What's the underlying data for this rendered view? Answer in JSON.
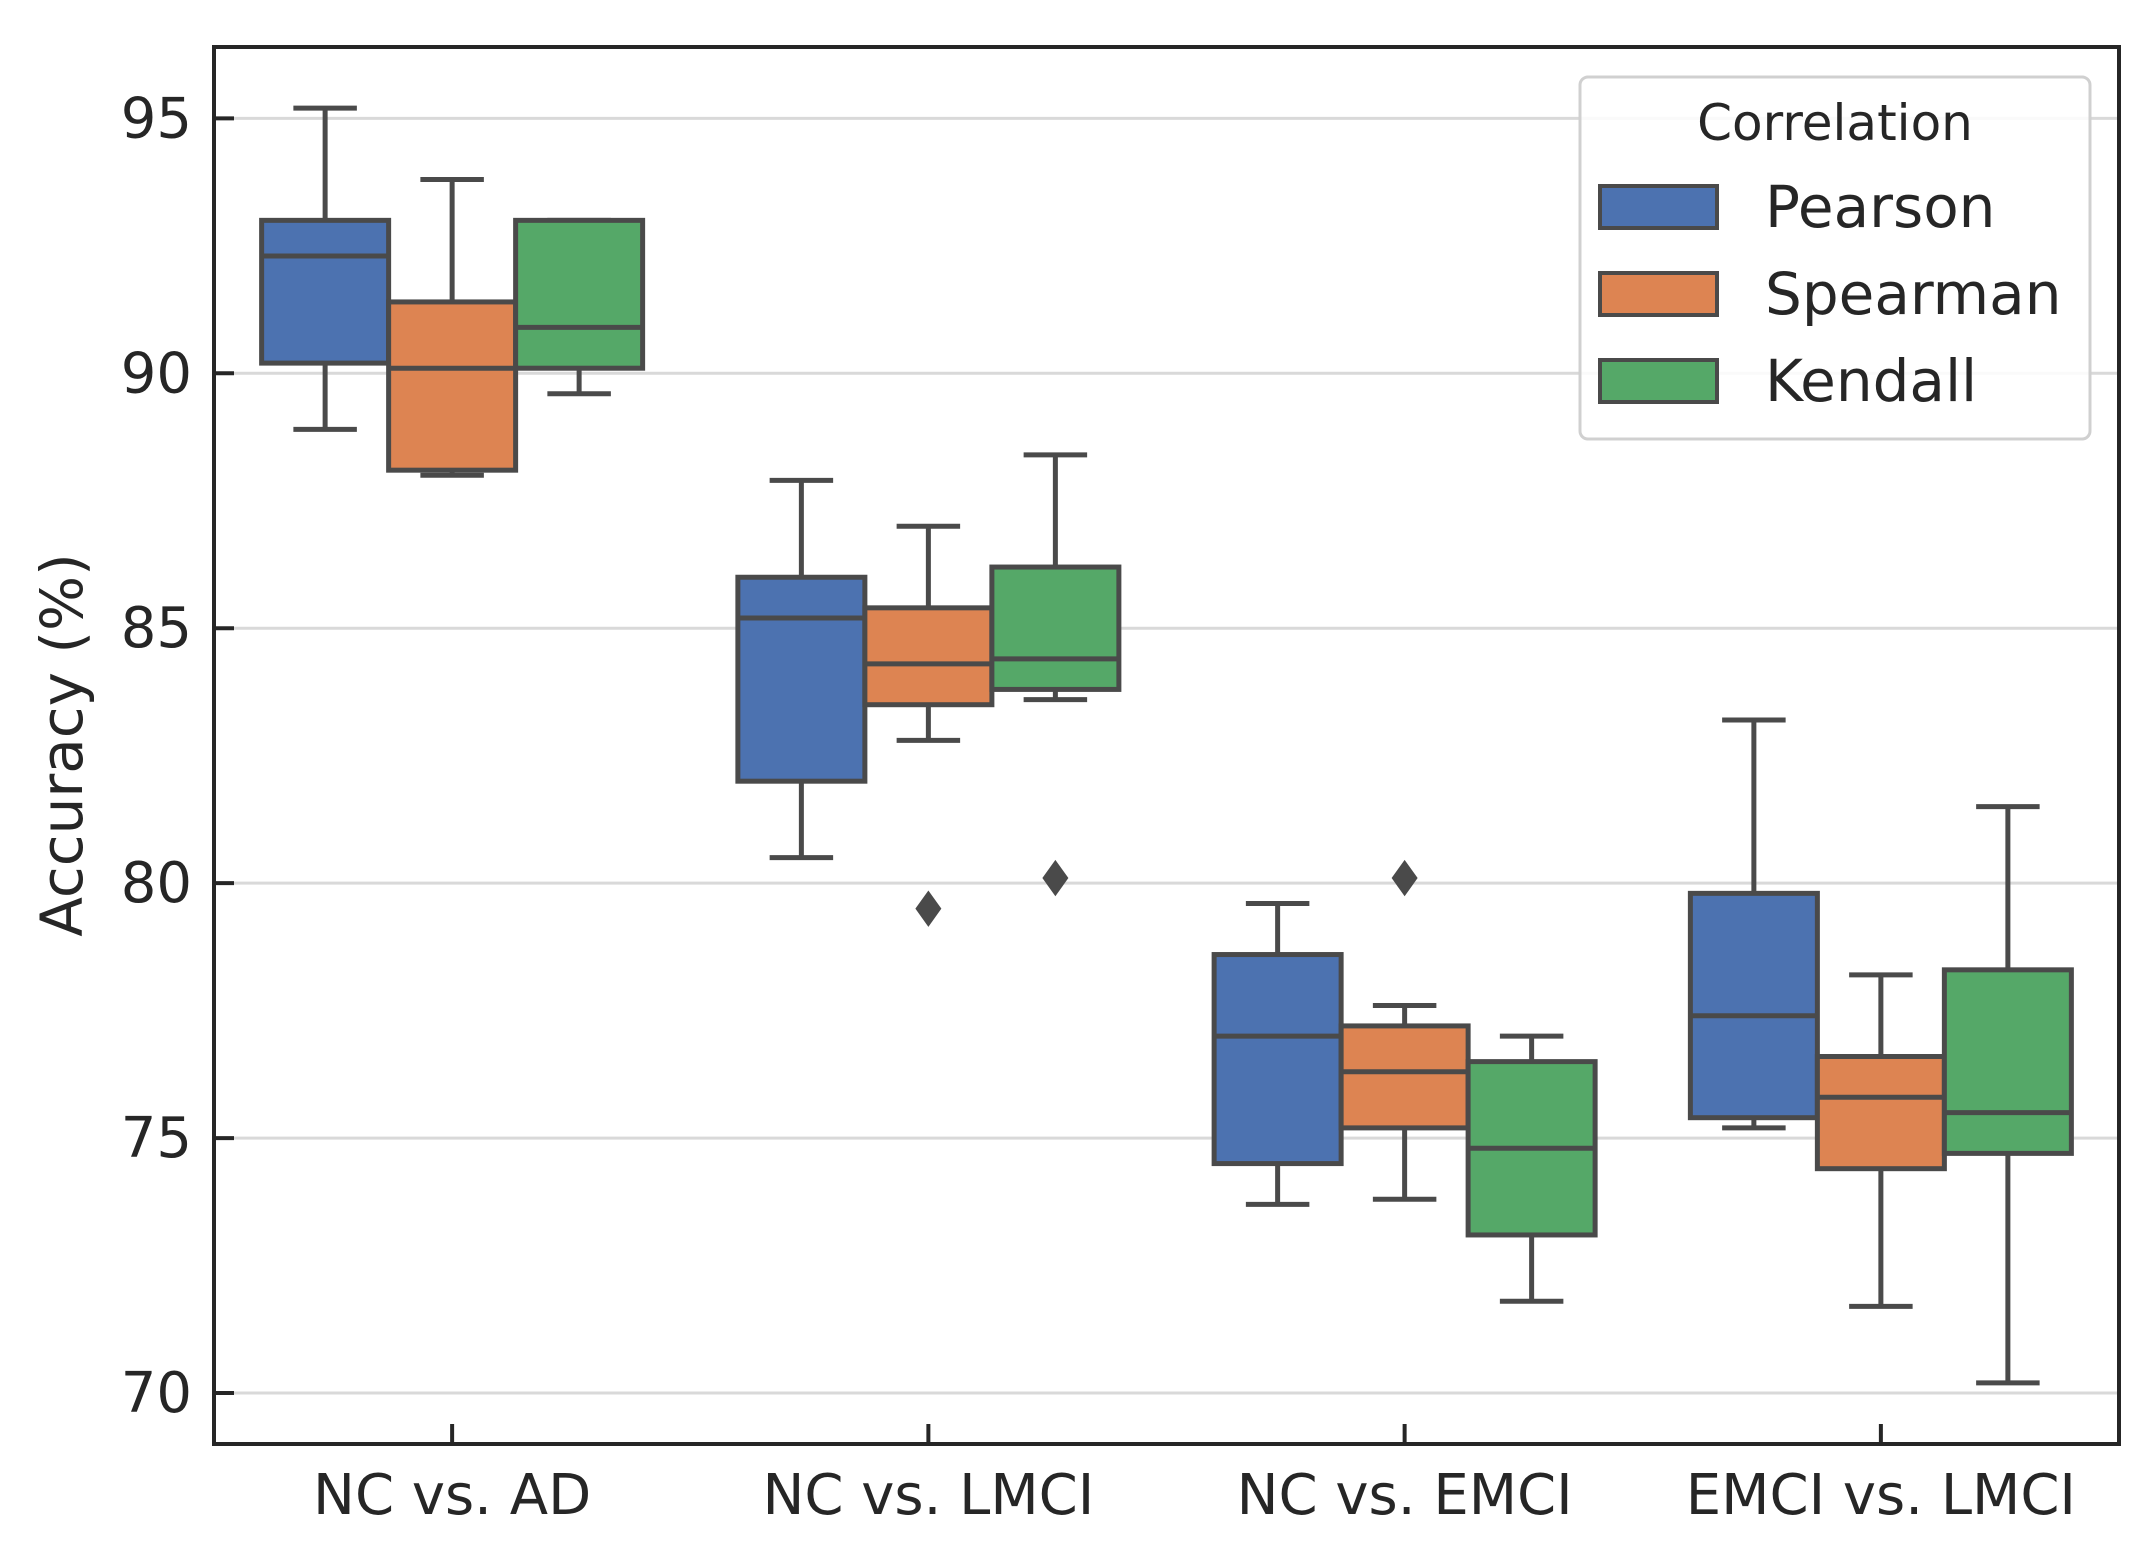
{
  "chart_data": {
    "type": "box",
    "title": "",
    "xlabel": "",
    "ylabel": "Accuracy (%)",
    "ylim": [
      69,
      96.4
    ],
    "yticks": [
      70,
      75,
      80,
      85,
      90,
      95
    ],
    "categories": [
      "NC vs. AD",
      "NC vs. LMCI",
      "NC vs. EMCI",
      "EMCI vs. LMCI"
    ],
    "legend": {
      "title": "Correlation",
      "position": "top-right"
    },
    "grid": {
      "y": true,
      "x": false
    },
    "series": [
      {
        "name": "Pearson",
        "color": "#4c72b0",
        "boxes": [
          {
            "whisker_low": 88.9,
            "q1": 90.2,
            "median": 92.3,
            "q3": 93.0,
            "whisker_high": 95.2,
            "outliers": []
          },
          {
            "whisker_low": 80.5,
            "q1": 82.0,
            "median": 85.2,
            "q3": 86.0,
            "whisker_high": 87.9,
            "outliers": []
          },
          {
            "whisker_low": 73.7,
            "q1": 74.5,
            "median": 77.0,
            "q3": 78.6,
            "whisker_high": 79.6,
            "outliers": []
          },
          {
            "whisker_low": 75.2,
            "q1": 75.4,
            "median": 77.4,
            "q3": 79.8,
            "whisker_high": 83.2,
            "outliers": []
          }
        ]
      },
      {
        "name": "Spearman",
        "color": "#dd8452",
        "boxes": [
          {
            "whisker_low": 88.0,
            "q1": 88.1,
            "median": 90.1,
            "q3": 91.4,
            "whisker_high": 93.8,
            "outliers": []
          },
          {
            "whisker_low": 82.8,
            "q1": 83.5,
            "median": 84.3,
            "q3": 85.4,
            "whisker_high": 87.0,
            "outliers": [
              79.5
            ]
          },
          {
            "whisker_low": 73.8,
            "q1": 75.2,
            "median": 76.3,
            "q3": 77.2,
            "whisker_high": 77.6,
            "outliers": [
              80.1
            ]
          },
          {
            "whisker_low": 71.7,
            "q1": 74.4,
            "median": 75.8,
            "q3": 76.6,
            "whisker_high": 78.2,
            "outliers": []
          }
        ]
      },
      {
        "name": "Kendall",
        "color": "#55a868",
        "boxes": [
          {
            "whisker_low": 89.6,
            "q1": 90.1,
            "median": 90.9,
            "q3": 93.0,
            "whisker_high": 93.0,
            "outliers": []
          },
          {
            "whisker_low": 83.6,
            "q1": 83.8,
            "median": 84.4,
            "q3": 86.2,
            "whisker_high": 88.4,
            "outliers": [
              80.1
            ]
          },
          {
            "whisker_low": 71.8,
            "q1": 73.1,
            "median": 74.8,
            "q3": 76.5,
            "whisker_high": 77.0,
            "outliers": []
          },
          {
            "whisker_low": 70.2,
            "q1": 74.7,
            "median": 75.5,
            "q3": 78.3,
            "whisker_high": 81.5,
            "outliers": []
          }
        ]
      }
    ]
  }
}
